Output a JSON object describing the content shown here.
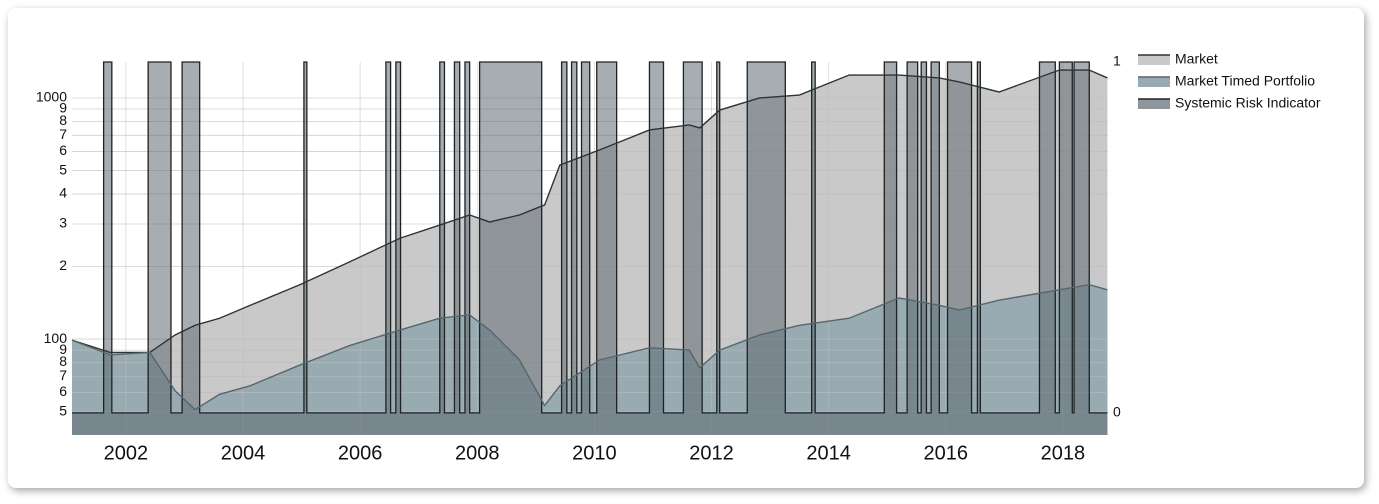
{
  "chart_data": {
    "type": "area",
    "log_scale": true,
    "grid": true,
    "legend": "right",
    "xlim": [
      2001.08,
      2018.77
    ],
    "xticks": [
      2002,
      2004,
      2006,
      2008,
      2010,
      2012,
      2014,
      2016,
      2018
    ],
    "ylim": [
      40,
      1410
    ],
    "yticks": [
      {
        "value": 50,
        "label": "5"
      },
      {
        "value": 60,
        "label": "6"
      },
      {
        "value": 70,
        "label": "7"
      },
      {
        "value": 80,
        "label": "8"
      },
      {
        "value": 90,
        "label": "9"
      },
      100,
      {
        "value": 200,
        "label": "2"
      },
      {
        "value": 300,
        "label": "3"
      },
      {
        "value": 400,
        "label": "4"
      },
      {
        "value": 500,
        "label": "5"
      },
      {
        "value": 600,
        "label": "6"
      },
      {
        "value": 700,
        "label": "7"
      },
      {
        "value": 800,
        "label": "8"
      },
      {
        "value": 900,
        "label": "9"
      },
      1000
    ],
    "y2lim": [
      -0.063,
      1
    ],
    "y2ticks": [
      0,
      1
    ],
    "x": [
      2001.08,
      2001.73,
      2002.41,
      2002.84,
      2003.18,
      2003.6,
      2004.12,
      2004.97,
      2005.82,
      2006.68,
      2007.36,
      2007.87,
      2008.21,
      2008.72,
      2009.15,
      2009.41,
      2010.09,
      2010.94,
      2011.62,
      2011.8,
      2012.14,
      2012.82,
      2013.5,
      2014.35,
      2015.2,
      2015.89,
      2016.23,
      2016.91,
      2017.94,
      2018.45,
      2018.76
    ],
    "series": [
      {
        "name": "Market",
        "color": "#c9c9c9",
        "line_color": "#2f3335",
        "values": [
          99,
          88,
          88,
          104,
          114,
          122,
          138,
          168,
          209,
          262,
          297,
          327,
          306,
          327,
          360,
          527,
          609,
          737,
          773,
          751,
          891,
          1000,
          1028,
          1245,
          1245,
          1211,
          1165,
          1059,
          1306,
          1306,
          1211
        ]
      },
      {
        "name": "Market Timed Portfolio",
        "color": "#98abb3",
        "line_color": "#56666d",
        "values": [
          99,
          86,
          88,
          61,
          51,
          59,
          64,
          78,
          94,
          109,
          122,
          126,
          109,
          82,
          53,
          64,
          82,
          92,
          90,
          76,
          90,
          104,
          114,
          122,
          148,
          138,
          132,
          145,
          160,
          168,
          160
        ]
      },
      {
        "name": "Systemic Risk Indicator",
        "color": "#5f6a70",
        "line_color": "#1e2224",
        "axis": "y2",
        "x": [
          2001.08,
          2001.62,
          2001.76,
          2002.38,
          2002.77,
          2002.96,
          2003.26,
          2005.04,
          2005.09,
          2006.44,
          2006.52,
          2006.61,
          2006.69,
          2007.36,
          2007.44,
          2007.61,
          2007.7,
          2007.79,
          2007.87,
          2008.04,
          2009.1,
          2009.44,
          2009.53,
          2009.61,
          2009.7,
          2009.78,
          2009.92,
          2010.04,
          2010.38,
          2010.94,
          2011.18,
          2011.52,
          2011.84,
          2012.09,
          2012.14,
          2012.61,
          2013.26,
          2013.71,
          2013.77,
          2014.95,
          2015.16,
          2015.34,
          2015.52,
          2015.58,
          2015.67,
          2015.75,
          2015.89,
          2016.03,
          2016.44,
          2016.54,
          2016.59,
          2017.6,
          2017.87,
          2017.94,
          2018.16,
          2018.19,
          2018.45,
          2018.76
        ],
        "values": [
          0,
          1,
          0,
          1,
          0,
          1,
          0,
          1,
          0,
          1,
          0,
          1,
          0,
          1,
          0,
          1,
          0,
          1,
          0,
          1,
          0,
          1,
          0,
          1,
          0,
          1,
          0,
          1,
          0,
          1,
          0,
          1,
          0,
          1,
          0,
          1,
          0,
          1,
          0,
          1,
          0,
          1,
          0,
          1,
          0,
          1,
          0,
          1,
          0,
          1,
          0,
          1,
          0,
          1,
          0,
          1,
          0,
          0
        ]
      }
    ]
  }
}
